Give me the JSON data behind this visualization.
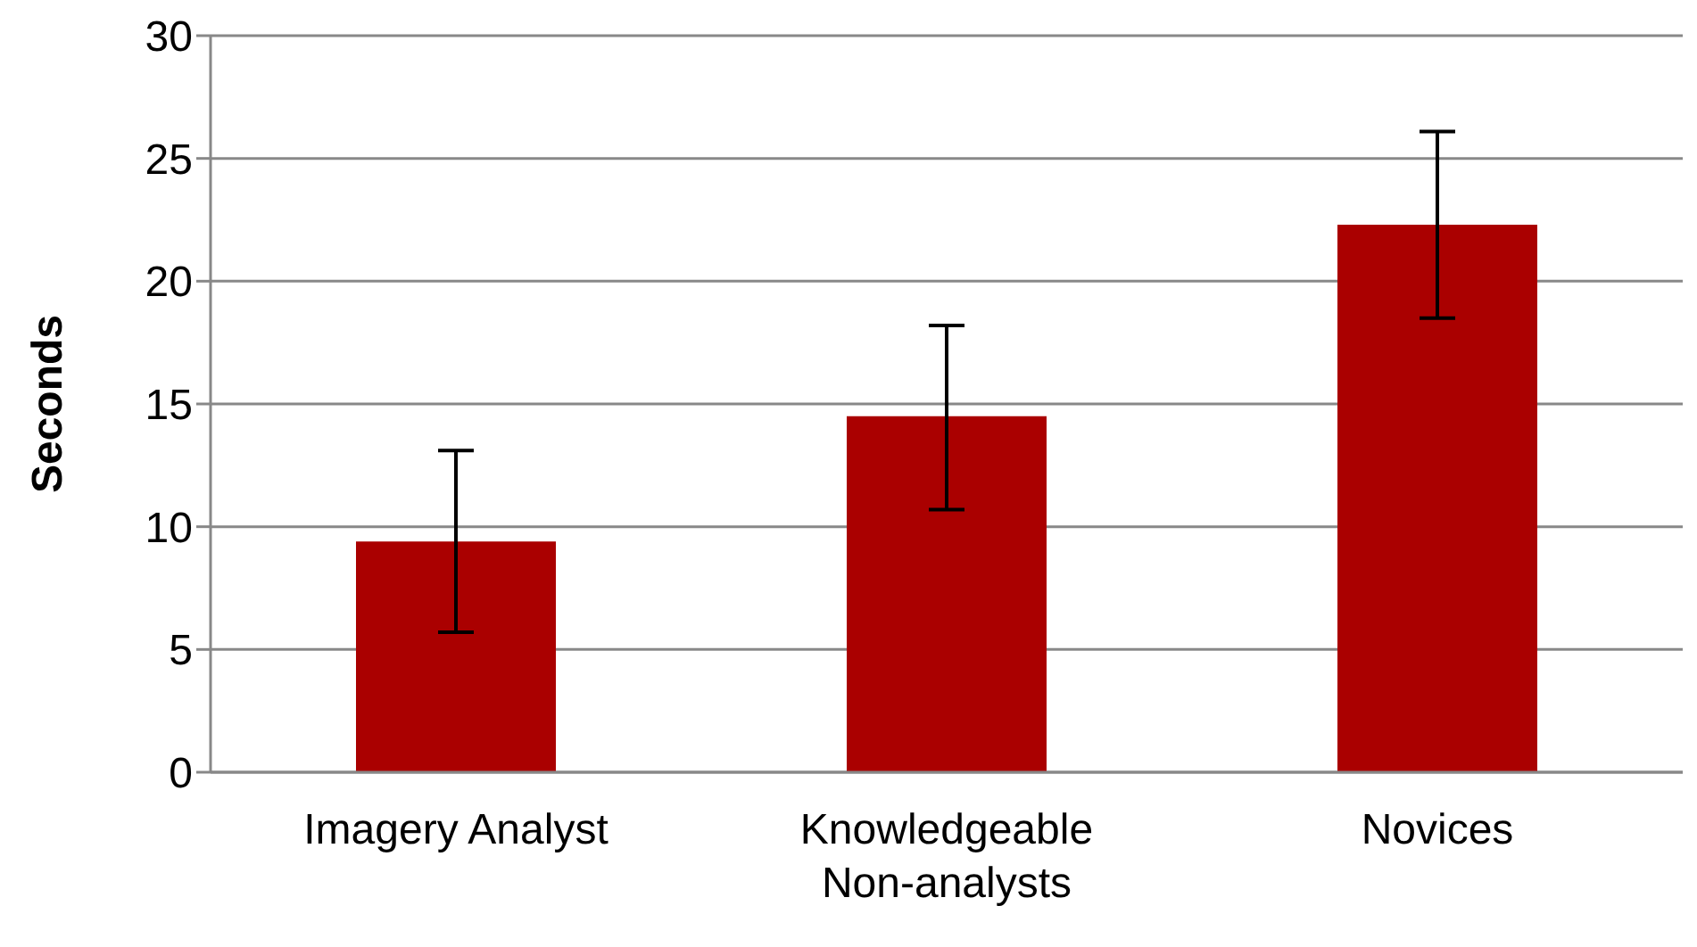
{
  "chart_data": {
    "type": "bar",
    "ylabel": "Seconds",
    "categories": [
      "Imagery Analyst",
      "Knowledgeable Non-analysts",
      "Novices"
    ],
    "values": [
      9.4,
      14.5,
      22.3
    ],
    "color": "#aa0000",
    "errors": [
      [
        5.7,
        13.1
      ],
      [
        10.7,
        18.2
      ],
      [
        18.5,
        26.1
      ]
    ],
    "ylim": [
      0,
      30
    ],
    "yticks": [
      0,
      5,
      10,
      15,
      20,
      25,
      30
    ],
    "grid": "y"
  }
}
